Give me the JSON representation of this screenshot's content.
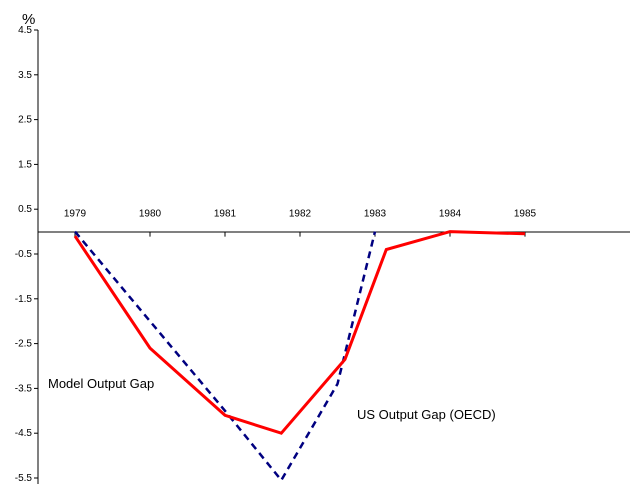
{
  "chart_data": {
    "type": "line",
    "title": "",
    "xlabel": "",
    "ylabel": "%",
    "ylim": [
      -5.5,
      4.5
    ],
    "y_ticks": [
      4.5,
      3.5,
      2.5,
      1.5,
      0.5,
      -0.5,
      -1.5,
      -2.5,
      -3.5,
      -4.5,
      -5.5
    ],
    "categories": [
      "1979",
      "1980",
      "1981",
      "1982",
      "1983",
      "1984",
      "1985"
    ],
    "grid": false,
    "legend": "none",
    "series": [
      {
        "name": "Model Output Gap",
        "color": "#ff0000",
        "style": "solid",
        "x": [
          1979.0,
          1980.0,
          1981.0,
          1981.75,
          1982.6,
          1983.15,
          1984.0,
          1985.0
        ],
        "values": [
          -0.1,
          -2.6,
          -4.1,
          -4.5,
          -2.85,
          -0.4,
          0.0,
          -0.05
        ]
      },
      {
        "name": "US Output Gap (OECD)",
        "color": "#000080",
        "style": "dashed",
        "x": [
          1979.0,
          1980.0,
          1981.0,
          1981.75,
          1982.5,
          1983.0
        ],
        "values": [
          0.0,
          -2.0,
          -4.0,
          -5.55,
          -3.4,
          0.0
        ]
      }
    ],
    "annotations": [
      {
        "text": "Model Output Gap",
        "series": 0
      },
      {
        "text": "US Output Gap (OECD)",
        "series": 1
      }
    ]
  }
}
